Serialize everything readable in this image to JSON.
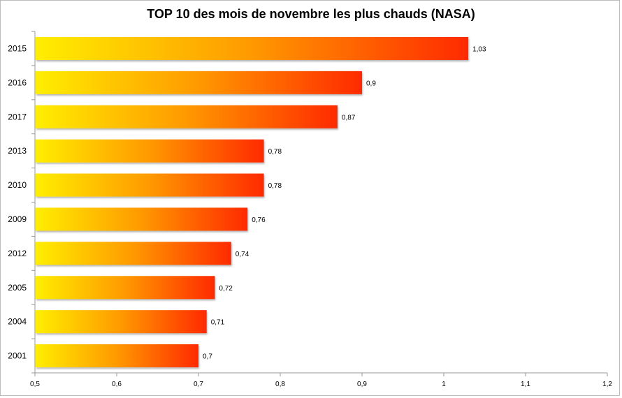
{
  "chart_data": {
    "type": "bar",
    "orientation": "horizontal",
    "title": "TOP 10 des mois de novembre les plus chauds (NASA)",
    "categories": [
      "2015",
      "2016",
      "2017",
      "2013",
      "2010",
      "2009",
      "2012",
      "2005",
      "2004",
      "2001"
    ],
    "values": [
      1.03,
      0.9,
      0.87,
      0.78,
      0.78,
      0.76,
      0.74,
      0.72,
      0.71,
      0.7
    ],
    "value_labels": [
      "1,03",
      "0,9",
      "0,87",
      "0,78",
      "0,78",
      "0,76",
      "0,74",
      "0,72",
      "0,71",
      "0,7"
    ],
    "xlim": [
      0.5,
      1.2
    ],
    "xticks": [
      0.5,
      0.6,
      0.7,
      0.8,
      0.9,
      1,
      1.1,
      1.2
    ],
    "xtick_labels": [
      "0,5",
      "0,6",
      "0,7",
      "0,8",
      "0,9",
      "1",
      "1,1",
      "1,2"
    ],
    "xlabel": "",
    "ylabel": "",
    "grid": false,
    "colors": {
      "gradient_start": "#ffee00",
      "gradient_mid": "#ff9900",
      "gradient_end": "#ff2a00"
    }
  }
}
